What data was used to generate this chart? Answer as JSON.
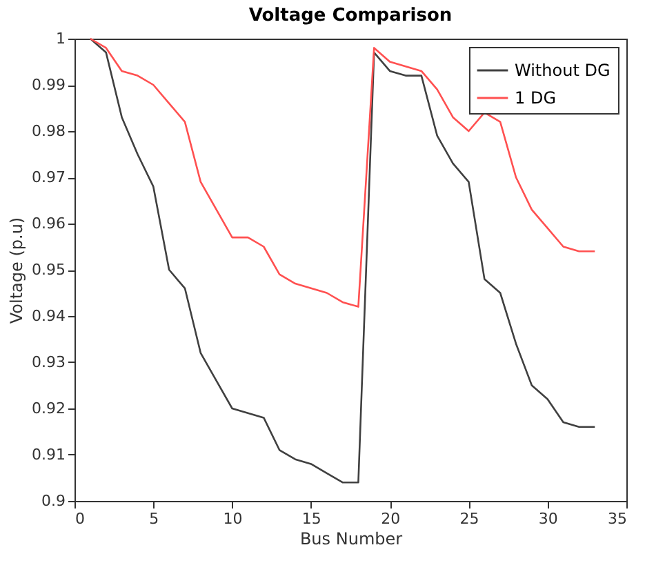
{
  "chart_data": {
    "type": "line",
    "title": "Voltage Comparison",
    "xlabel": "Bus Number",
    "ylabel": "Voltage (p.u)",
    "x": [
      1,
      2,
      3,
      4,
      5,
      6,
      7,
      8,
      9,
      10,
      11,
      12,
      13,
      14,
      15,
      16,
      17,
      18,
      19,
      20,
      21,
      22,
      23,
      24,
      25,
      26,
      27,
      28,
      29,
      30,
      31,
      32,
      33
    ],
    "series": [
      {
        "name": "Without DG",
        "color": "#404040",
        "values": [
          1,
          0.997,
          0.983,
          0.975,
          0.968,
          0.95,
          0.946,
          0.932,
          0.926,
          0.92,
          0.919,
          0.918,
          0.911,
          0.909,
          0.908,
          0.906,
          0.904,
          0.904,
          0.997,
          0.993,
          0.992,
          0.992,
          0.979,
          0.973,
          0.969,
          0.948,
          0.945,
          0.934,
          0.925,
          0.922,
          0.917,
          0.916,
          0.916
        ]
      },
      {
        "name": "1 DG",
        "color": "#ff5050",
        "values": [
          1,
          0.998,
          0.993,
          0.992,
          0.99,
          0.986,
          0.982,
          0.969,
          0.963,
          0.957,
          0.957,
          0.955,
          0.949,
          0.947,
          0.946,
          0.945,
          0.943,
          0.942,
          0.998,
          0.995,
          0.994,
          0.993,
          0.989,
          0.983,
          0.98,
          0.984,
          0.982,
          0.97,
          0.963,
          0.959,
          0.955,
          0.954,
          0.954
        ]
      }
    ],
    "xlim": [
      0,
      35
    ],
    "xticks": [
      0,
      5,
      10,
      15,
      20,
      25,
      30,
      35
    ],
    "ylim": [
      0.9,
      1
    ],
    "yticks": [
      0.9,
      0.91,
      0.92,
      0.93,
      0.94,
      0.95,
      0.96,
      0.97,
      0.98,
      0.99,
      1
    ],
    "grid": false,
    "legend": "top right",
    "marker": "none",
    "line_style": "solid"
  }
}
